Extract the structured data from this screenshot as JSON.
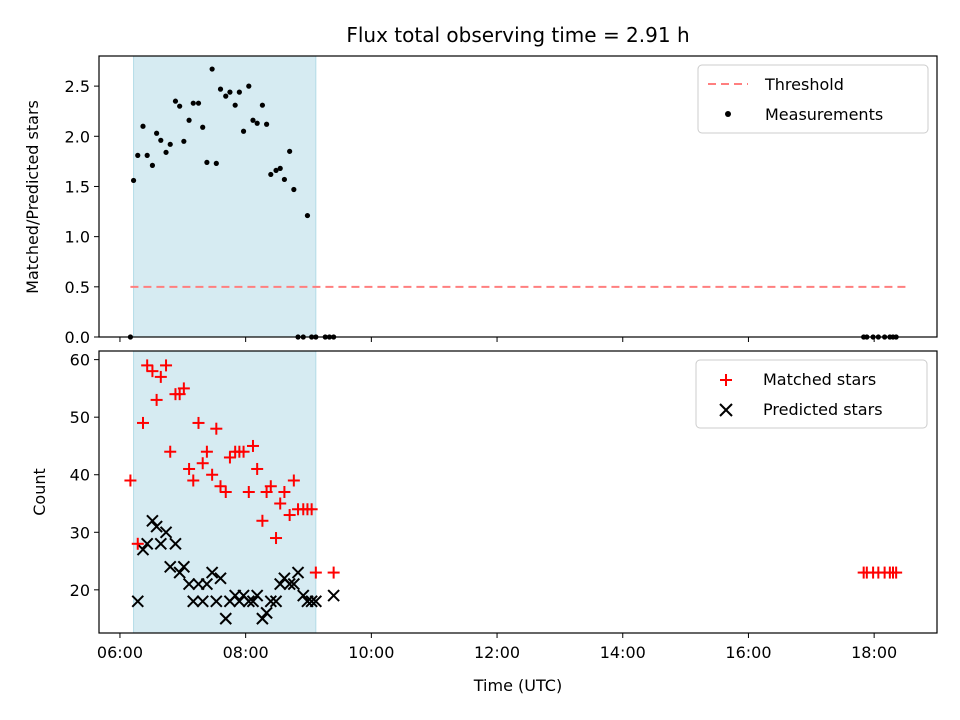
{
  "chart_data": [
    {
      "type": "scatter",
      "title": "Flux total observing time = 2.91 h",
      "xlabel": "",
      "ylabel": "Matched/Predicted stars",
      "xlim": [
        "05:40",
        "19:00"
      ],
      "ylim": [
        0,
        2.8
      ],
      "yticks": [
        "0.0",
        "0.5",
        "1.0",
        "1.5",
        "2.0",
        "2.5"
      ],
      "shaded_span": {
        "start": "06:13",
        "end": "09:07"
      },
      "legend_position": "upper right",
      "series": [
        {
          "name": "Threshold",
          "style": "dashed-line",
          "color": "#ff7f7f",
          "x": [
            "06:10",
            "18:30"
          ],
          "y": [
            0.5,
            0.5
          ]
        },
        {
          "name": "Measurements",
          "style": "dot",
          "color": "#000000",
          "x": [
            "06:10",
            "06:13",
            "06:17",
            "06:22",
            "06:26",
            "06:31",
            "06:35",
            "06:39",
            "06:44",
            "06:48",
            "06:53",
            "06:57",
            "07:01",
            "07:06",
            "07:10",
            "07:15",
            "07:19",
            "07:23",
            "07:28",
            "07:32",
            "07:36",
            "07:41",
            "07:45",
            "07:50",
            "07:54",
            "07:58",
            "08:03",
            "08:07",
            "08:11",
            "08:16",
            "08:20",
            "08:24",
            "08:29",
            "08:33",
            "08:37",
            "08:42",
            "08:46",
            "08:50",
            "08:55",
            "08:59",
            "09:03",
            "09:07",
            "09:16",
            "09:20",
            "09:24",
            "17:50",
            "17:53",
            "17:59",
            "18:04",
            "18:10",
            "18:15",
            "18:18",
            "18:21"
          ],
          "y": [
            0.0,
            1.56,
            1.81,
            2.1,
            1.81,
            1.71,
            2.03,
            1.96,
            1.84,
            1.92,
            2.35,
            2.3,
            1.95,
            2.16,
            2.33,
            2.33,
            2.09,
            1.74,
            2.67,
            1.73,
            2.47,
            2.4,
            2.44,
            2.31,
            2.44,
            2.05,
            2.5,
            2.16,
            2.13,
            2.31,
            2.12,
            1.62,
            1.66,
            1.68,
            1.57,
            1.85,
            1.47,
            0.0,
            0.0,
            1.21,
            0.0,
            0.0,
            0.0,
            0.0,
            0.0,
            0.0,
            0.0,
            0.0,
            0.0,
            0.0,
            0.0,
            0.0,
            0.0
          ]
        }
      ]
    },
    {
      "type": "scatter",
      "title": "",
      "xlabel": "Time (UTC)",
      "ylabel": "Count",
      "xlim": [
        "05:40",
        "19:00"
      ],
      "ylim": [
        12.5,
        61.5
      ],
      "yticks": [
        "20",
        "30",
        "40",
        "50",
        "60"
      ],
      "xticks": [
        "06:00",
        "08:00",
        "10:00",
        "12:00",
        "14:00",
        "16:00",
        "18:00"
      ],
      "shaded_span": {
        "start": "06:13",
        "end": "09:07"
      },
      "legend_position": "upper right",
      "series": [
        {
          "name": "Matched stars",
          "marker": "plus",
          "color": "#ff0000",
          "x": [
            "06:10",
            "06:17",
            "06:22",
            "06:26",
            "06:31",
            "06:35",
            "06:39",
            "06:44",
            "06:48",
            "06:53",
            "06:57",
            "07:01",
            "07:06",
            "07:10",
            "07:15",
            "07:19",
            "07:23",
            "07:28",
            "07:32",
            "07:36",
            "07:41",
            "07:45",
            "07:50",
            "07:54",
            "07:58",
            "08:03",
            "08:07",
            "08:11",
            "08:16",
            "08:20",
            "08:24",
            "08:29",
            "08:33",
            "08:37",
            "08:42",
            "08:46",
            "08:50",
            "08:55",
            "08:59",
            "09:03",
            "09:07",
            "09:24",
            "17:50",
            "17:53",
            "17:59",
            "18:04",
            "18:10",
            "18:15",
            "18:18",
            "18:21"
          ],
          "y": [
            39,
            28,
            49,
            59,
            58,
            53,
            57,
            59,
            44,
            54,
            54,
            55,
            41,
            39,
            49,
            42,
            44,
            40,
            48,
            38,
            37,
            43,
            44,
            44,
            44,
            37,
            45,
            41,
            32,
            37,
            38,
            29,
            35,
            37,
            33,
            39,
            34,
            34,
            34,
            34,
            23,
            23,
            23,
            23,
            23,
            23,
            23,
            23,
            23,
            23
          ]
        },
        {
          "name": "Predicted stars",
          "marker": "x",
          "color": "#000000",
          "x": [
            "06:17",
            "06:22",
            "06:26",
            "06:31",
            "06:35",
            "06:39",
            "06:44",
            "06:48",
            "06:53",
            "06:57",
            "07:01",
            "07:06",
            "07:10",
            "07:15",
            "07:19",
            "07:23",
            "07:28",
            "07:32",
            "07:36",
            "07:41",
            "07:45",
            "07:50",
            "07:54",
            "07:58",
            "08:03",
            "08:07",
            "08:11",
            "08:16",
            "08:20",
            "08:24",
            "08:29",
            "08:33",
            "08:37",
            "08:42",
            "08:46",
            "08:50",
            "08:55",
            "08:59",
            "09:03",
            "09:07",
            "09:24"
          ],
          "y": [
            18,
            27,
            28,
            32,
            31,
            28,
            30,
            24,
            28,
            23,
            24,
            21,
            18,
            21,
            18,
            21,
            23,
            18,
            22,
            15,
            18,
            19,
            18,
            19,
            18,
            18,
            19,
            15,
            16,
            18,
            18,
            21,
            22,
            21,
            21,
            23,
            19,
            18,
            18,
            18,
            19
          ]
        }
      ]
    }
  ]
}
